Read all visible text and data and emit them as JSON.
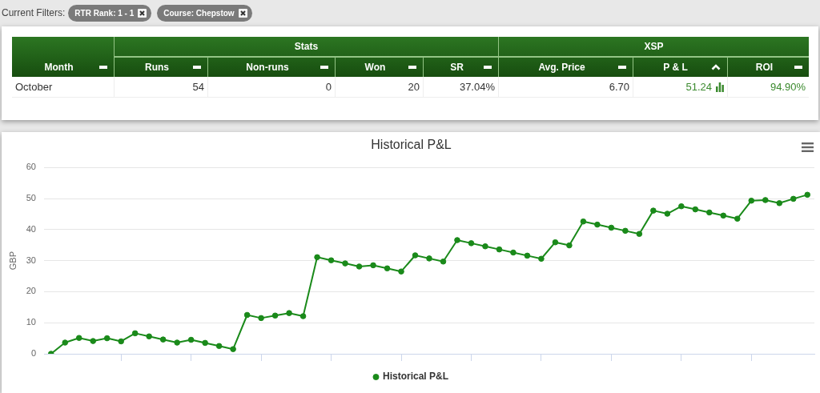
{
  "chart_data": [
    {
      "type": "other",
      "annotations": [
        "Current Filters:",
        "RTR Rank: 1 - 1",
        "Course: Chepstow",
        "Stats",
        "XSP"
      ],
      "ylabel": "Month",
      "y_categories": [
        "October"
      ],
      "categories": [
        "Runs",
        "Non-runs",
        "Won",
        "SR",
        "Avg. Price",
        "P & L",
        "ROI"
      ],
      "cell_labels": [
        [
          "54",
          "0",
          "20",
          "37.04%",
          "6.70",
          "51.24",
          "94.90%"
        ]
      ]
    },
    {
      "type": "line",
      "title": "Historical P&L",
      "ylabel": "GBP",
      "categories": [
        null,
        null,
        null,
        null,
        null,
        null,
        null,
        null,
        null,
        null,
        null,
        null,
        null,
        null,
        null,
        null,
        null,
        null,
        null,
        null,
        null,
        null,
        null,
        null,
        null,
        null,
        null,
        null,
        null,
        null,
        null,
        null,
        null,
        null,
        null,
        null,
        null,
        null,
        null,
        null,
        null,
        null,
        null,
        null,
        null,
        null,
        null,
        null,
        null,
        null,
        null,
        null,
        null,
        null,
        null
      ],
      "series": [
        {
          "name": "Historical P&L",
          "color": "#1a8a1a",
          "values": [
            0,
            3.6,
            5.1,
            4.1,
            5.0,
            4.0,
            6.6,
            5.6,
            4.6,
            3.6,
            4.5,
            3.5,
            2.5,
            1.5,
            12.5,
            11.5,
            12.3,
            13.1,
            12.1,
            31.1,
            30.1,
            29.1,
            28.1,
            28.5,
            27.5,
            26.5,
            31.7,
            30.7,
            29.7,
            36.6,
            35.6,
            34.6,
            33.6,
            32.6,
            31.6,
            30.6,
            35.9,
            34.9,
            42.6,
            41.6,
            40.6,
            39.6,
            38.6,
            46.1,
            45.1,
            47.5,
            46.5,
            45.5,
            44.5,
            43.5,
            49.3,
            49.5,
            48.5,
            49.9,
            51.2
          ]
        }
      ],
      "ylim": [
        0,
        60
      ],
      "yticks": [
        0,
        10,
        20,
        30,
        40,
        50,
        60
      ],
      "grid": "y",
      "legend": "bottom",
      "marker": "circle"
    }
  ]
}
